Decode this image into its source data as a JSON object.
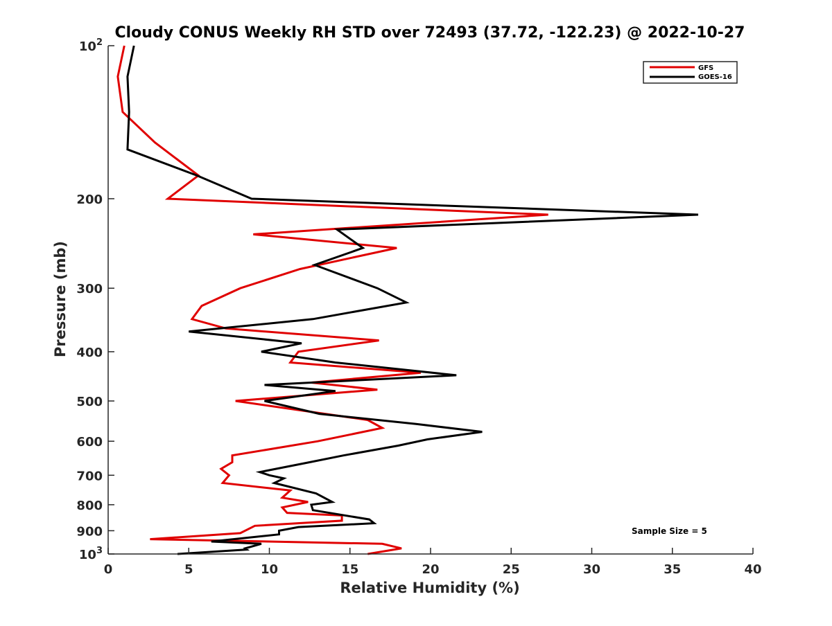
{
  "chart_data": {
    "type": "line",
    "title": "Cloudy CONUS Weekly RH STD over 72493 (37.72, -122.23) @ 2022-10-27",
    "xlabel": "Relative Humidity (%)",
    "ylabel": "Pressure (mb)",
    "xlim": [
      0,
      40
    ],
    "ylim": [
      100,
      1000
    ],
    "y_scale": "log",
    "y_reversed": true,
    "x_ticks": [
      0,
      5,
      10,
      15,
      20,
      25,
      30,
      35,
      40
    ],
    "x_tick_labels": [
      "0",
      "5",
      "10",
      "15",
      "20",
      "25",
      "30",
      "35",
      "40"
    ],
    "y_ticks": [
      100,
      200,
      300,
      400,
      500,
      600,
      700,
      800,
      900,
      1000
    ],
    "y_tick_labels": [
      "10^2",
      "200",
      "300",
      "400",
      "500",
      "600",
      "700",
      "800",
      "900",
      "10^3"
    ],
    "grid": false,
    "legend_position": "top-right",
    "annotation": "Sample Size = 5",
    "series": [
      {
        "name": "GFS",
        "color": "#e00000",
        "points": [
          [
            1.0,
            100
          ],
          [
            0.6,
            115
          ],
          [
            0.9,
            135
          ],
          [
            2.9,
            155
          ],
          [
            5.6,
            180
          ],
          [
            3.7,
            200
          ],
          [
            27.3,
            215
          ],
          [
            9.0,
            235
          ],
          [
            17.9,
            250
          ],
          [
            11.9,
            275
          ],
          [
            8.2,
            300
          ],
          [
            5.8,
            325
          ],
          [
            5.2,
            345
          ],
          [
            7.3,
            360
          ],
          [
            16.8,
            380
          ],
          [
            11.8,
            400
          ],
          [
            11.3,
            420
          ],
          [
            19.4,
            440
          ],
          [
            12.6,
            460
          ],
          [
            16.7,
            475
          ],
          [
            7.9,
            500
          ],
          [
            16.1,
            545
          ],
          [
            17.0,
            565
          ],
          [
            13.0,
            600
          ],
          [
            7.7,
            640
          ],
          [
            7.7,
            660
          ],
          [
            7.0,
            680
          ],
          [
            7.5,
            700
          ],
          [
            7.1,
            725
          ],
          [
            11.3,
            750
          ],
          [
            10.8,
            775
          ],
          [
            12.4,
            790
          ],
          [
            10.8,
            810
          ],
          [
            11.1,
            830
          ],
          [
            14.5,
            840
          ],
          [
            14.5,
            860
          ],
          [
            9.1,
            880
          ],
          [
            8.2,
            910
          ],
          [
            2.6,
            935
          ],
          [
            17.0,
            955
          ],
          [
            18.2,
            975
          ],
          [
            16.1,
            1000
          ]
        ]
      },
      {
        "name": "GOES-16",
        "color": "#000000",
        "points": [
          [
            1.6,
            100
          ],
          [
            1.2,
            115
          ],
          [
            1.3,
            135
          ],
          [
            1.2,
            160
          ],
          [
            5.5,
            180
          ],
          [
            8.9,
            200
          ],
          [
            36.6,
            215
          ],
          [
            14.2,
            230
          ],
          [
            15.8,
            250
          ],
          [
            12.8,
            270
          ],
          [
            16.7,
            300
          ],
          [
            18.5,
            320
          ],
          [
            12.7,
            345
          ],
          [
            5.0,
            365
          ],
          [
            12.0,
            385
          ],
          [
            9.5,
            400
          ],
          [
            14.1,
            420
          ],
          [
            21.6,
            445
          ],
          [
            9.7,
            465
          ],
          [
            14.1,
            478
          ],
          [
            9.7,
            500
          ],
          [
            13.1,
            530
          ],
          [
            19.1,
            555
          ],
          [
            23.2,
            575
          ],
          [
            19.8,
            595
          ],
          [
            18.0,
            612
          ],
          [
            14.6,
            640
          ],
          [
            12.5,
            660
          ],
          [
            9.4,
            690
          ],
          [
            10.0,
            700
          ],
          [
            10.9,
            710
          ],
          [
            10.3,
            725
          ],
          [
            12.9,
            760
          ],
          [
            13.9,
            790
          ],
          [
            12.6,
            800
          ],
          [
            12.7,
            820
          ],
          [
            16.2,
            855
          ],
          [
            16.5,
            870
          ],
          [
            11.8,
            885
          ],
          [
            10.6,
            900
          ],
          [
            10.6,
            915
          ],
          [
            6.4,
            945
          ],
          [
            9.5,
            955
          ],
          [
            8.5,
            975
          ],
          [
            8.6,
            980
          ],
          [
            4.3,
            1000
          ]
        ]
      }
    ]
  }
}
